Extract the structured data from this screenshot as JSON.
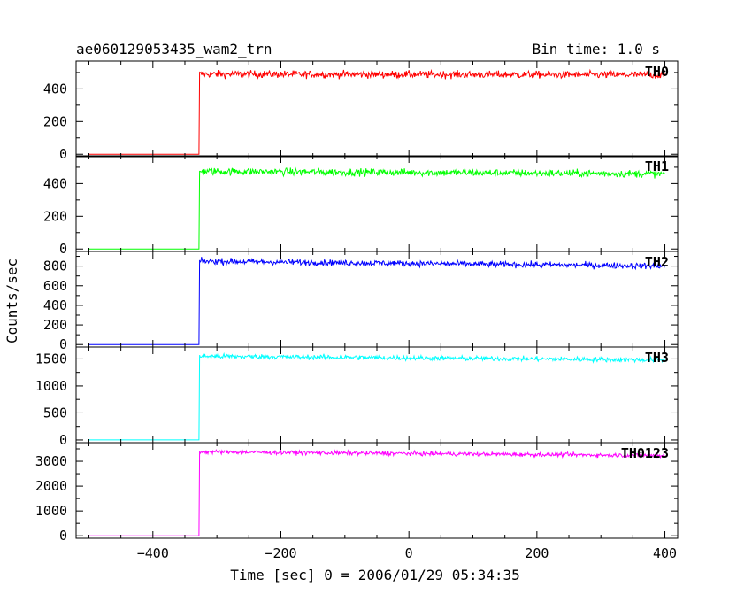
{
  "header": {
    "left": "ae060129053435_wam2_trn",
    "right": "Bin time: 1.0 s"
  },
  "xaxis": {
    "label": "Time [sec] 0 = 2006/01/29 05:34:35",
    "ticks": [
      "−400",
      "−200",
      "0",
      "200",
      "400"
    ]
  },
  "yaxis": {
    "label": "Counts/sec"
  },
  "chart_data": {
    "type": "line",
    "title": "ae060129053435_wam2_trn",
    "subtitle": "Bin time: 1.0 s",
    "xlabel": "Time [sec] 0 = 2006/01/29 05:34:35",
    "ylabel": "Counts/sec",
    "xlim": [
      -520,
      420
    ],
    "x_ticks": [
      -400,
      -200,
      0,
      200,
      400
    ],
    "grid": false,
    "step_time": -327,
    "x_start": -500,
    "x_end": 400,
    "panels": [
      {
        "name": "TH0",
        "color": "#ff0000",
        "ylim": [
          -15,
          570
        ],
        "y_ticks": [
          0,
          200,
          400
        ],
        "y_tick_labels": [
          "0",
          "200",
          "400"
        ],
        "level_before": 0,
        "level_after": 490,
        "noise": 22,
        "drift_end": 485
      },
      {
        "name": "TH1",
        "color": "#00ff00",
        "ylim": [
          -15,
          570
        ],
        "y_ticks": [
          0,
          200,
          400
        ],
        "y_tick_labels": [
          "0",
          "200",
          "400"
        ],
        "level_before": 0,
        "level_after": 475,
        "noise": 22,
        "drift_end": 460
      },
      {
        "name": "TH2",
        "color": "#0000ff",
        "ylim": [
          -25,
          950
        ],
        "y_ticks": [
          0,
          200,
          400,
          600,
          800
        ],
        "y_tick_labels": [
          "0",
          "200",
          "400",
          "600",
          "800"
        ],
        "level_before": 0,
        "level_after": 850,
        "noise": 30,
        "drift_end": 800
      },
      {
        "name": "TH3",
        "color": "#00ffff",
        "ylim": [
          -50,
          1720
        ],
        "y_ticks": [
          0,
          500,
          1000,
          1500
        ],
        "y_tick_labels": [
          "0",
          "500",
          "1000",
          "1500"
        ],
        "level_before": 0,
        "level_after": 1550,
        "noise": 45,
        "drift_end": 1480
      },
      {
        "name": "TH0123",
        "color": "#ff00ff",
        "ylim": [
          -100,
          3750
        ],
        "y_ticks": [
          0,
          1000,
          2000,
          3000
        ],
        "y_tick_labels": [
          "0",
          "1000",
          "2000",
          "3000"
        ],
        "level_before": 0,
        "level_after": 3380,
        "noise": 80,
        "drift_end": 3230
      }
    ]
  }
}
